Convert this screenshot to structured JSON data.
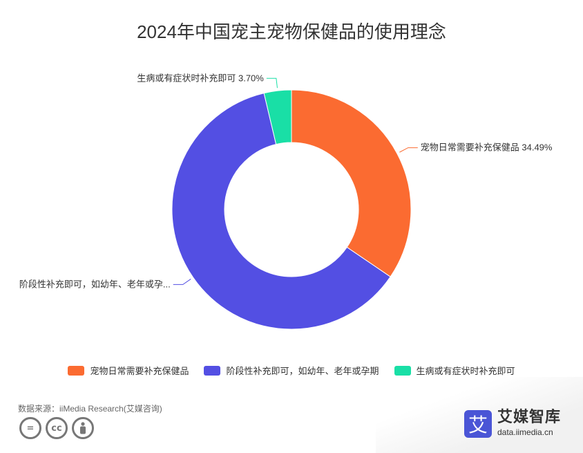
{
  "chart_data": {
    "type": "pie",
    "title": "2024年中国宠主宠物保健品的使用理念",
    "slices": [
      {
        "name": "宠物日常需要补充保健品",
        "value": 34.49,
        "label": "宠物日常需要补充保健品 34.49%",
        "color": "#fb6b31"
      },
      {
        "name": "阶段性补充即可，如幼年、老年或孕期",
        "value": 61.81,
        "label": "阶段性补充即可，如幼年、老年或孕...",
        "color": "#534fe3"
      },
      {
        "name": "生病或有症状时补充即可",
        "value": 3.7,
        "label": "生病或有症状时补充即可 3.70%",
        "color": "#19dfa6"
      }
    ],
    "legend_position": "bottom"
  },
  "legend": [
    {
      "label": "宠物日常需要补充保健品",
      "color": "#fb6b31"
    },
    {
      "label": "阶段性补充即可，如幼年、老年或孕期",
      "color": "#534fe3"
    },
    {
      "label": "生病或有症状时补充即可",
      "color": "#19dfa6"
    }
  ],
  "source": "数据来源：iiMedia Research(艾媒咨询)",
  "license_icons": [
    "equals-icon",
    "cc-icon",
    "person-icon"
  ],
  "brand": {
    "logo_char": "艾",
    "name": "艾媒智库",
    "url": "data.iimedia.cn",
    "color": "#4a55d6"
  }
}
